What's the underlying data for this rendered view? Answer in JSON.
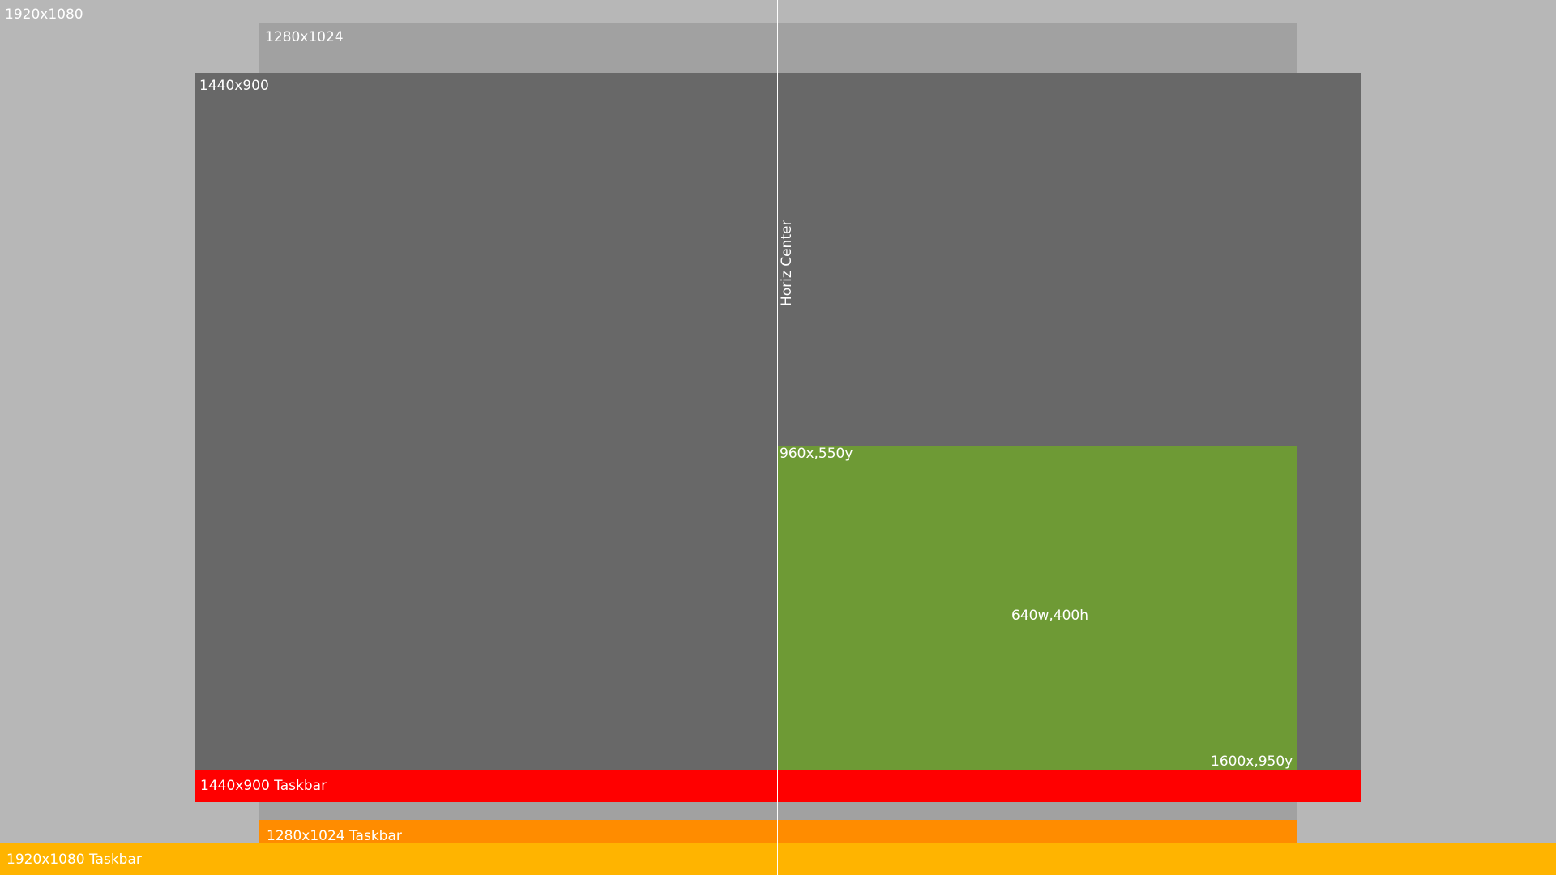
{
  "labels": {
    "screen_1920": "1920x1080",
    "screen_1280": "1280x1024",
    "screen_1440": "1440x900",
    "horiz_center": "Horiz Center",
    "green_top_left": "960x,550y",
    "green_center": "640w,400h",
    "green_bottom_right": "1600x,950y",
    "taskbar_1440": "1440x900 Taskbar",
    "taskbar_1280": "1280x1024 Taskbar",
    "taskbar_1920": "1920x1080 Taskbar"
  },
  "colors": {
    "background_1920": "#b7b7b7",
    "background_1280": "#a1a1a1",
    "background_1440": "#686868",
    "target_region": "#6e9a35",
    "taskbar_1440": "#ff0000",
    "taskbar_1280": "#ff8c00",
    "taskbar_1920": "#ffb400",
    "guide_line": "#ffffff",
    "label_text": "#ffffff"
  }
}
